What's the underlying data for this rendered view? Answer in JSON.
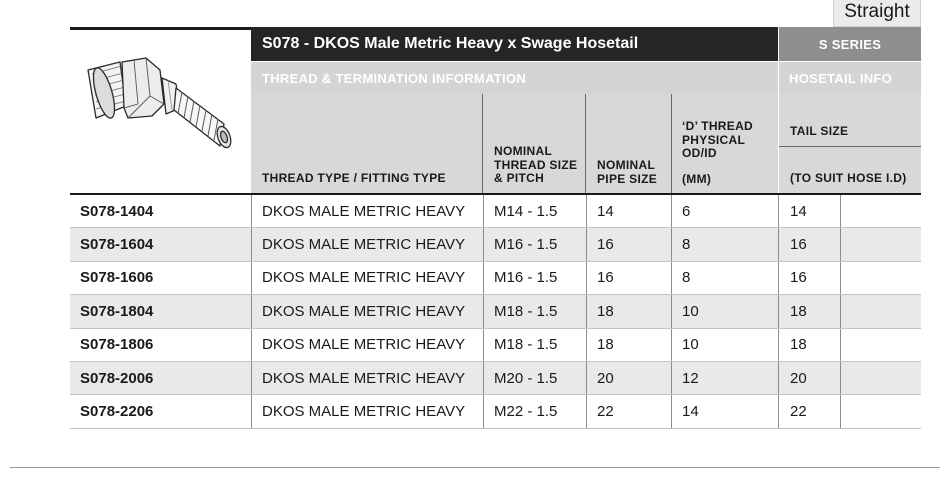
{
  "page_tab": {
    "label": "Straight"
  },
  "product": {
    "title": "S078 - DKOS Male Metric Heavy x Swage Hosetail",
    "series": "S SERIES",
    "image_icon": "swage-hosetail-fitting-image"
  },
  "sections": {
    "thread_info": "THREAD & TERMINATION INFORMATION",
    "hosetail_info": "HOSETAIL INFO"
  },
  "columns": {
    "thread_type": "THREAD TYPE / FITTING TYPE",
    "thread_size": [
      "NOMINAL",
      "THREAD SIZE",
      "& PITCH"
    ],
    "pipe_size": [
      "NOMINAL",
      "PIPE SIZE"
    ],
    "d_thread": [
      "‘D’ THREAD",
      "PHYSICAL",
      "OD/ID",
      "(MM)"
    ],
    "tail_size": "TAIL SIZE",
    "tail_sub": "(TO SUIT HOSE I.D)"
  },
  "rows": [
    {
      "code": "S078-1404",
      "type": "DKOS MALE METRIC HEAVY",
      "thread": "M14 - 1.5",
      "pipe": "14",
      "d": "6",
      "tail": "14"
    },
    {
      "code": "S078-1604",
      "type": "DKOS MALE METRIC HEAVY",
      "thread": "M16 - 1.5",
      "pipe": "16",
      "d": "8",
      "tail": "16"
    },
    {
      "code": "S078-1606",
      "type": "DKOS MALE METRIC HEAVY",
      "thread": "M16 - 1.5",
      "pipe": "16",
      "d": "8",
      "tail": "16"
    },
    {
      "code": "S078-1804",
      "type": "DKOS MALE METRIC HEAVY",
      "thread": "M18 - 1.5",
      "pipe": "18",
      "d": "10",
      "tail": "18"
    },
    {
      "code": "S078-1806",
      "type": "DKOS MALE METRIC HEAVY",
      "thread": "M18 - 1.5",
      "pipe": "18",
      "d": "10",
      "tail": "18"
    },
    {
      "code": "S078-2006",
      "type": "DKOS MALE METRIC HEAVY",
      "thread": "M20 - 1.5",
      "pipe": "20",
      "d": "12",
      "tail": "20"
    },
    {
      "code": "S078-2206",
      "type": "DKOS MALE METRIC HEAVY",
      "thread": "M22 - 1.5",
      "pipe": "22",
      "d": "14",
      "tail": "22"
    }
  ]
}
